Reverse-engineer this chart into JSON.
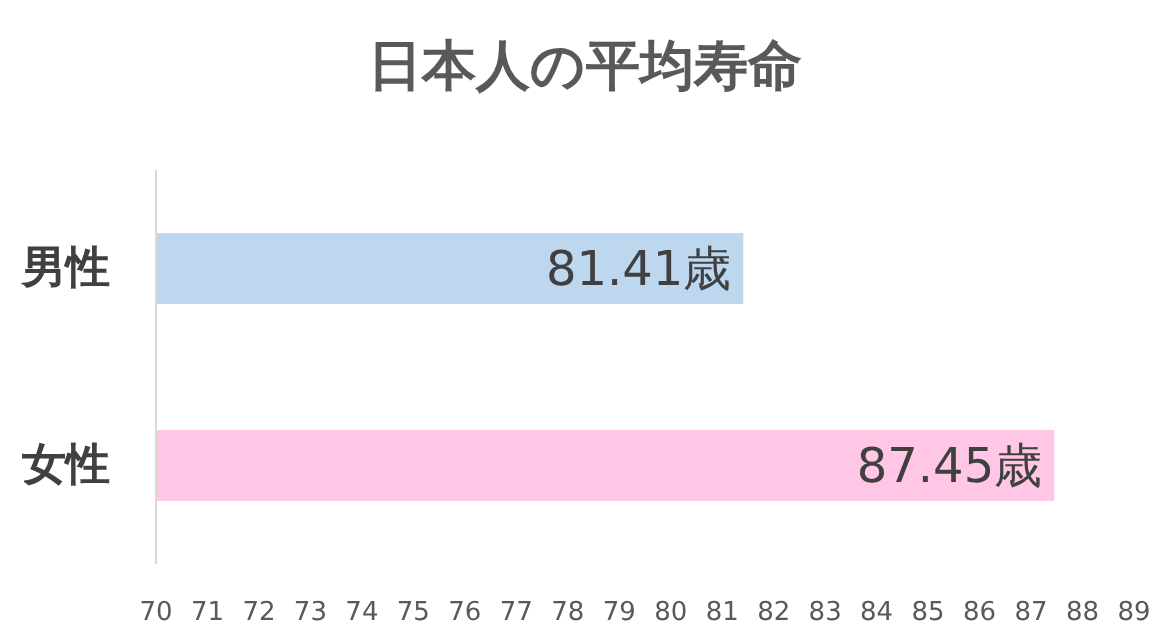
{
  "chart_data": {
    "type": "bar",
    "orientation": "horizontal",
    "title": "日本人の平均寿命",
    "categories": [
      "男性",
      "女性"
    ],
    "values": [
      81.41,
      87.45
    ],
    "colors": [
      "#bdd7ee",
      "#ffc7e5"
    ],
    "value_labels": [
      "81.41歳",
      "87.45歳"
    ],
    "xlim": [
      70,
      89
    ],
    "xticks": [
      70,
      71,
      72,
      73,
      74,
      75,
      76,
      77,
      78,
      79,
      80,
      81,
      82,
      83,
      84,
      85,
      86,
      87,
      88,
      89
    ]
  }
}
